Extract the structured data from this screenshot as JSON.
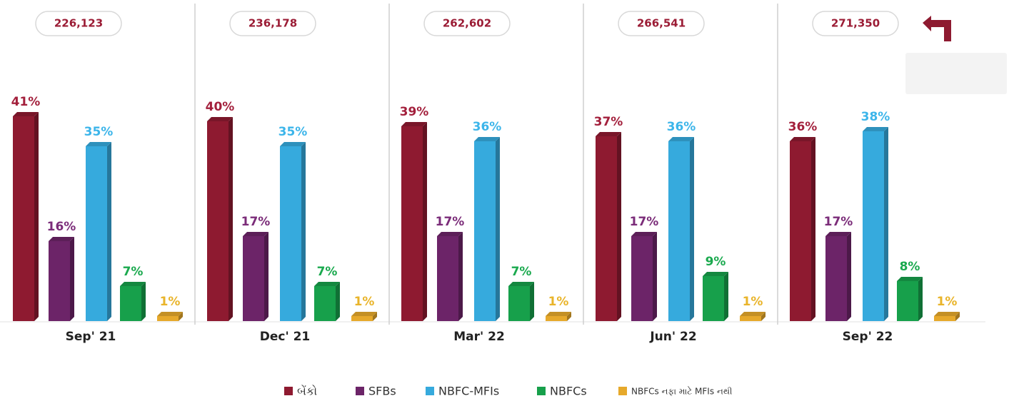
{
  "chart_data": {
    "type": "bar",
    "categories": [
      "Sep' 21",
      "Dec' 21",
      "Mar' 22",
      "Jun' 22",
      "Sep' 22"
    ],
    "totals": [
      226123,
      236178,
      262602,
      266541,
      271350
    ],
    "total_labels": [
      "226,123",
      "236,178",
      "262,602",
      "266,541",
      "271,350"
    ],
    "series": [
      {
        "name": "બેંકો",
        "color": "#8e1a30",
        "label_color": "#a3203c",
        "values": [
          41,
          40,
          39,
          37,
          36
        ],
        "value_labels": [
          "41%",
          "40%",
          "39%",
          "37%",
          "36%"
        ]
      },
      {
        "name": "SFBs",
        "color": "#6c2468",
        "label_color": "#7b2c79",
        "values": [
          16,
          17,
          17,
          17,
          17
        ],
        "value_labels": [
          "16%",
          "17%",
          "17%",
          "17%",
          "17%"
        ]
      },
      {
        "name": "NBFC-MFIs",
        "color": "#36aadd",
        "label_color": "#3cb5ea",
        "values": [
          35,
          35,
          36,
          36,
          38
        ],
        "value_labels": [
          "35%",
          "35%",
          "36%",
          "36%",
          "38%"
        ]
      },
      {
        "name": "NBFCs",
        "color": "#17a04b",
        "label_color": "#1aa94e",
        "values": [
          7,
          7,
          7,
          9,
          8
        ],
        "value_labels": [
          "7%",
          "7%",
          "7%",
          "9%",
          "8%"
        ]
      },
      {
        "name": "NBFCs નફા માટે MFIs નથી",
        "color": "#e6a92b",
        "label_color": "#e9b42a",
        "values": [
          1,
          1,
          1,
          1,
          1
        ],
        "value_labels": [
          "1%",
          "1%",
          "1%",
          "1%",
          "1%"
        ]
      }
    ]
  }
}
